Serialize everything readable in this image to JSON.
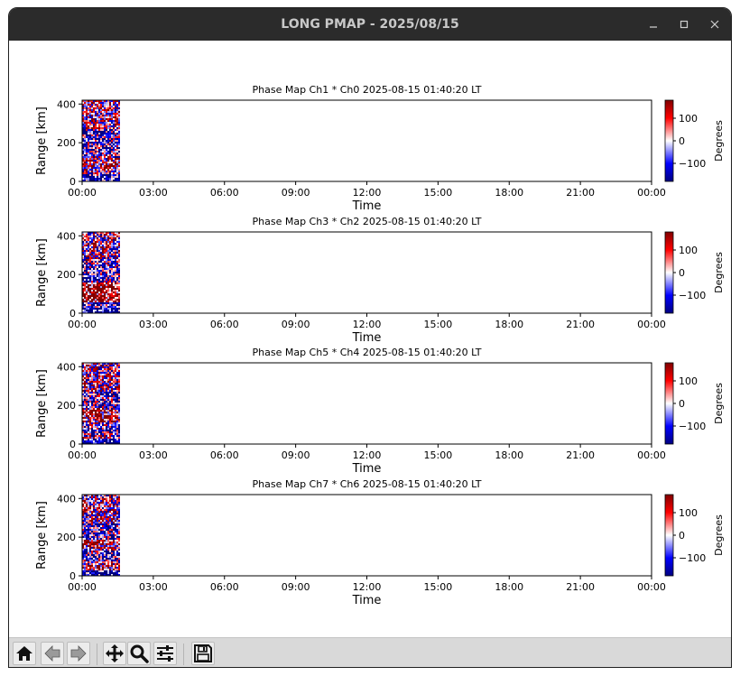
{
  "window": {
    "title": "LONG PMAP - 2025/08/15",
    "controls": [
      "minimize-icon",
      "maximize-icon",
      "close-icon"
    ]
  },
  "toolbar": {
    "buttons": [
      {
        "name": "home-button",
        "icon": "home-icon"
      },
      {
        "name": "back-button",
        "icon": "arrow-left-icon"
      },
      {
        "name": "forward-button",
        "icon": "arrow-right-icon"
      },
      {
        "name": "pan-button",
        "icon": "move-icon"
      },
      {
        "name": "zoom-button",
        "icon": "magnifier-icon"
      },
      {
        "name": "configure-subplots-button",
        "icon": "sliders-icon"
      },
      {
        "name": "save-button",
        "icon": "floppy-disk-icon"
      }
    ]
  },
  "colors": {
    "titlebar": "#2b2b2b",
    "toolbar": "#d9d9d9",
    "colormap_low": "#000080",
    "colormap_mid": "#ffffff",
    "colormap_high": "#800000"
  },
  "chart_data": [
    {
      "type": "heatmap",
      "title": "Phase Map Ch1 * Ch0 2025-08-15 01:40:20 LT",
      "xlabel": "Time",
      "ylabel": "Range [km]",
      "xticks": [
        "00:00",
        "03:00",
        "06:00",
        "09:00",
        "12:00",
        "15:00",
        "18:00",
        "21:00",
        "00:00"
      ],
      "xlim_hours": [
        0,
        24
      ],
      "yticks": [
        0,
        200,
        400
      ],
      "ylim": [
        0,
        420
      ],
      "data_extent_hours": [
        0,
        1.67
      ],
      "colorbar": {
        "label": "Degrees",
        "ticks": [
          100,
          0,
          -100
        ],
        "range": [
          -180,
          180
        ]
      }
    },
    {
      "type": "heatmap",
      "title": "Phase Map Ch3 * Ch2 2025-08-15 01:40:20 LT",
      "xlabel": "Time",
      "ylabel": "Range [km]",
      "xticks": [
        "00:00",
        "03:00",
        "06:00",
        "09:00",
        "12:00",
        "15:00",
        "18:00",
        "21:00",
        "00:00"
      ],
      "xlim_hours": [
        0,
        24
      ],
      "yticks": [
        0,
        200,
        400
      ],
      "ylim": [
        0,
        420
      ],
      "data_extent_hours": [
        0,
        1.67
      ],
      "colorbar": {
        "label": "Degrees",
        "ticks": [
          100,
          0,
          -100
        ],
        "range": [
          -180,
          180
        ]
      }
    },
    {
      "type": "heatmap",
      "title": "Phase Map Ch5 * Ch4 2025-08-15 01:40:20 LT",
      "xlabel": "Time",
      "ylabel": "Range [km]",
      "xticks": [
        "00:00",
        "03:00",
        "06:00",
        "09:00",
        "12:00",
        "15:00",
        "18:00",
        "21:00",
        "00:00"
      ],
      "xlim_hours": [
        0,
        24
      ],
      "yticks": [
        0,
        200,
        400
      ],
      "ylim": [
        0,
        420
      ],
      "data_extent_hours": [
        0,
        1.67
      ],
      "colorbar": {
        "label": "Degrees",
        "ticks": [
          100,
          0,
          -100
        ],
        "range": [
          -180,
          180
        ]
      }
    },
    {
      "type": "heatmap",
      "title": "Phase Map Ch7 * Ch6 2025-08-15 01:40:20 LT",
      "xlabel": "Time",
      "ylabel": "Range [km]",
      "xticks": [
        "00:00",
        "03:00",
        "06:00",
        "09:00",
        "12:00",
        "15:00",
        "18:00",
        "21:00",
        "00:00"
      ],
      "xlim_hours": [
        0,
        24
      ],
      "yticks": [
        0,
        200,
        400
      ],
      "ylim": [
        0,
        420
      ],
      "data_extent_hours": [
        0,
        1.67
      ],
      "colorbar": {
        "label": "Degrees",
        "ticks": [
          100,
          0,
          -100
        ],
        "range": [
          -180,
          180
        ]
      }
    }
  ]
}
